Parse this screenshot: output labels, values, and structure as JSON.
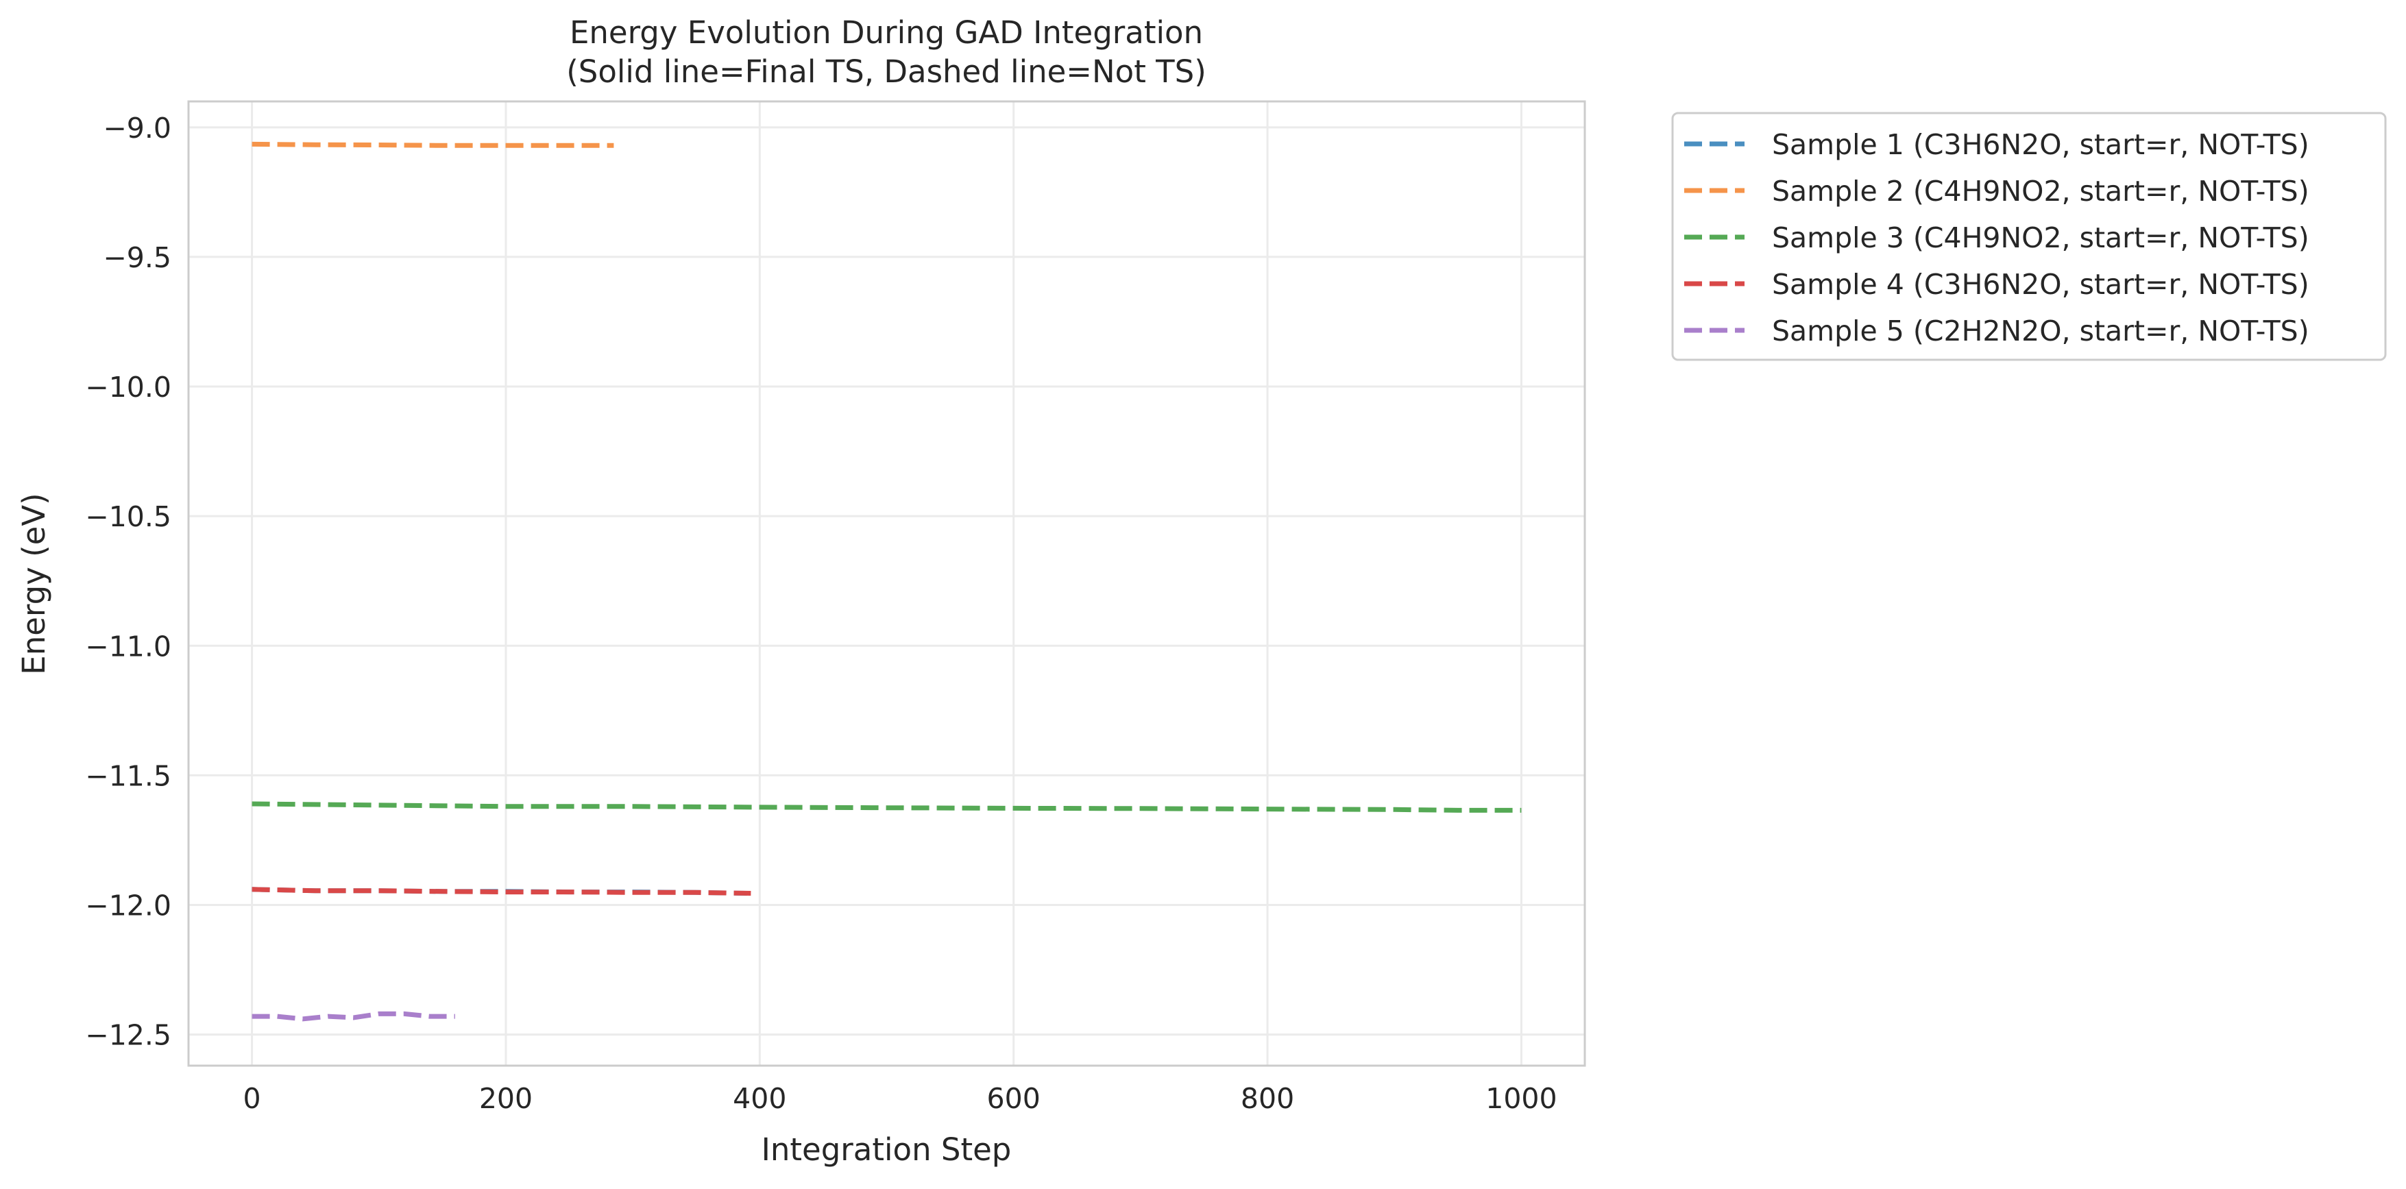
{
  "chart_data": {
    "type": "line",
    "title": "Energy Evolution During GAD Integration",
    "subtitle": "(Solid line=Final TS, Dashed line=Not TS)",
    "xlabel": "Integration Step",
    "ylabel": "Energy (eV)",
    "xlim": [
      -50,
      1050
    ],
    "ylim": [
      -12.62,
      -8.9
    ],
    "xticks": [
      0,
      200,
      400,
      600,
      800,
      1000
    ],
    "xtick_labels": [
      "0",
      "200",
      "400",
      "600",
      "800",
      "1000"
    ],
    "yticks": [
      -9.0,
      -9.5,
      -10.0,
      -10.5,
      -11.0,
      -11.5,
      -12.0,
      -12.5
    ],
    "ytick_labels": [
      "−9.0",
      "−9.5",
      "−10.0",
      "−10.5",
      "−11.0",
      "−11.5",
      "−12.0",
      "−12.5"
    ],
    "grid": true,
    "legend_position": "outside-top-right",
    "series": [
      {
        "name": "Sample 1 (C3H6N2O, start=r, NOT-TS)",
        "color": "#4a8fc0",
        "dashed": true,
        "x": [
          0,
          50,
          100,
          150,
          200,
          250,
          300,
          350,
          390
        ],
        "y": [
          -11.94,
          -11.945,
          -11.945,
          -11.948,
          -11.948,
          -11.95,
          -11.95,
          -11.952,
          -11.955
        ]
      },
      {
        "name": "Sample 2 (C4H9NO2, start=r, NOT-TS)",
        "color": "#f5944a",
        "dashed": true,
        "x": [
          0,
          50,
          100,
          150,
          200,
          250,
          285
        ],
        "y": [
          -9.065,
          -9.067,
          -9.068,
          -9.07,
          -9.07,
          -9.07,
          -9.07
        ]
      },
      {
        "name": "Sample 3 (C4H9NO2, start=r, NOT-TS)",
        "color": "#55a955",
        "dashed": true,
        "x": [
          0,
          100,
          200,
          300,
          400,
          500,
          600,
          700,
          800,
          900,
          950,
          1000
        ],
        "y": [
          -11.61,
          -11.615,
          -11.62,
          -11.62,
          -11.623,
          -11.625,
          -11.627,
          -11.628,
          -11.63,
          -11.632,
          -11.635,
          -11.635
        ]
      },
      {
        "name": "Sample 4 (C3H6N2O, start=r, NOT-TS)",
        "color": "#d94848",
        "dashed": true,
        "x": [
          0,
          50,
          100,
          150,
          200,
          250,
          300,
          350,
          393
        ],
        "y": [
          -11.94,
          -11.945,
          -11.945,
          -11.948,
          -11.95,
          -11.95,
          -11.952,
          -11.952,
          -11.955
        ]
      },
      {
        "name": "Sample 5 (C2H2N2O, start=r, NOT-TS)",
        "color": "#a97fcb",
        "dashed": true,
        "x": [
          0,
          20,
          40,
          60,
          80,
          100,
          120,
          140,
          160
        ],
        "y": [
          -12.43,
          -12.43,
          -12.44,
          -12.43,
          -12.435,
          -12.42,
          -12.42,
          -12.43,
          -12.43
        ]
      }
    ]
  }
}
